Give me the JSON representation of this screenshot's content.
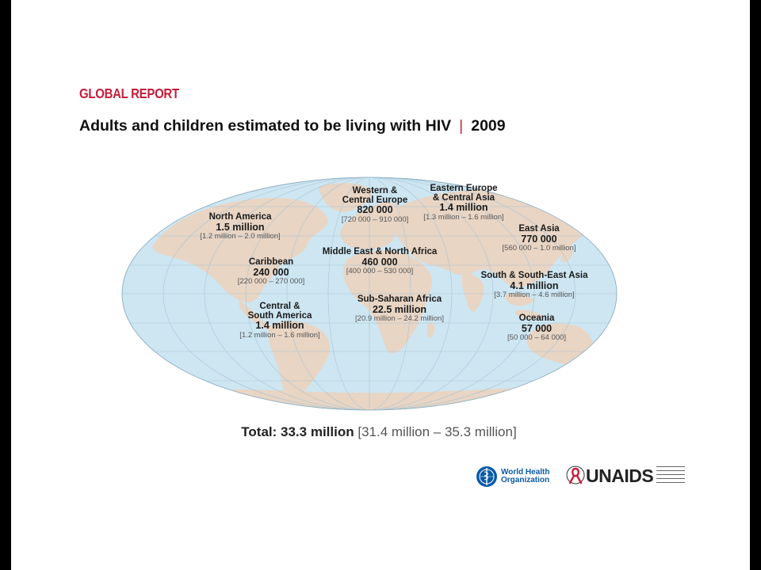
{
  "header": {
    "kicker": "GLOBAL REPORT",
    "kicker_color": "#c41e3a",
    "title_main": "Adults and children estimated to be living with HIV",
    "title_separator": "|",
    "separator_color": "#c41e3a",
    "title_year": "2009"
  },
  "map": {
    "ocean_color": "#cde6f2",
    "land_color": "#e8d5c4",
    "regions": [
      {
        "key": "north_america",
        "name_lines": [
          "North America"
        ],
        "value": "1.5 million",
        "range": "[1.2 million – 2.0 million]"
      },
      {
        "key": "caribbean",
        "name_lines": [
          "Caribbean"
        ],
        "value": "240 000",
        "range": "[220 000 – 270 000]"
      },
      {
        "key": "central_south_america",
        "name_lines": [
          "Central &",
          "South America"
        ],
        "value": "1.4 million",
        "range": "[1.2 million – 1.6 million]"
      },
      {
        "key": "western_central_europe",
        "name_lines": [
          "Western &",
          "Central Europe"
        ],
        "value": "820 000",
        "range": "[720 000 – 910 000]"
      },
      {
        "key": "eastern_europe_central_asia",
        "name_lines": [
          "Eastern Europe",
          "& Central Asia"
        ],
        "value": "1.4 million",
        "range": "[1.3 million – 1.6 million]"
      },
      {
        "key": "middle_east_north_africa",
        "name_lines": [
          "Middle East & North Africa"
        ],
        "value": "460 000",
        "range": "[400 000 – 530 000]"
      },
      {
        "key": "sub_saharan_africa",
        "name_lines": [
          "Sub-Saharan Africa"
        ],
        "value": "22.5 million",
        "range": "[20.9 million – 24.2 million]"
      },
      {
        "key": "east_asia",
        "name_lines": [
          "East Asia"
        ],
        "value": "770 000",
        "range": "[560 000 – 1.0 million]"
      },
      {
        "key": "south_southeast_asia",
        "name_lines": [
          "South & South-East Asia"
        ],
        "value": "4.1 million",
        "range": "[3.7 million – 4.6 million]"
      },
      {
        "key": "oceania",
        "name_lines": [
          "Oceania"
        ],
        "value": "57 000",
        "range": "[50 000 – 64 000]"
      }
    ]
  },
  "total": {
    "label": "Total: 33.3 million",
    "range": "[31.4 million – 35.3 million]"
  },
  "logos": {
    "who_line1": "World Health",
    "who_line2": "Organization",
    "who_color": "#0a5aa8",
    "unaids_word": "UNAIDS",
    "ribbon_color": "#c41e3a"
  }
}
